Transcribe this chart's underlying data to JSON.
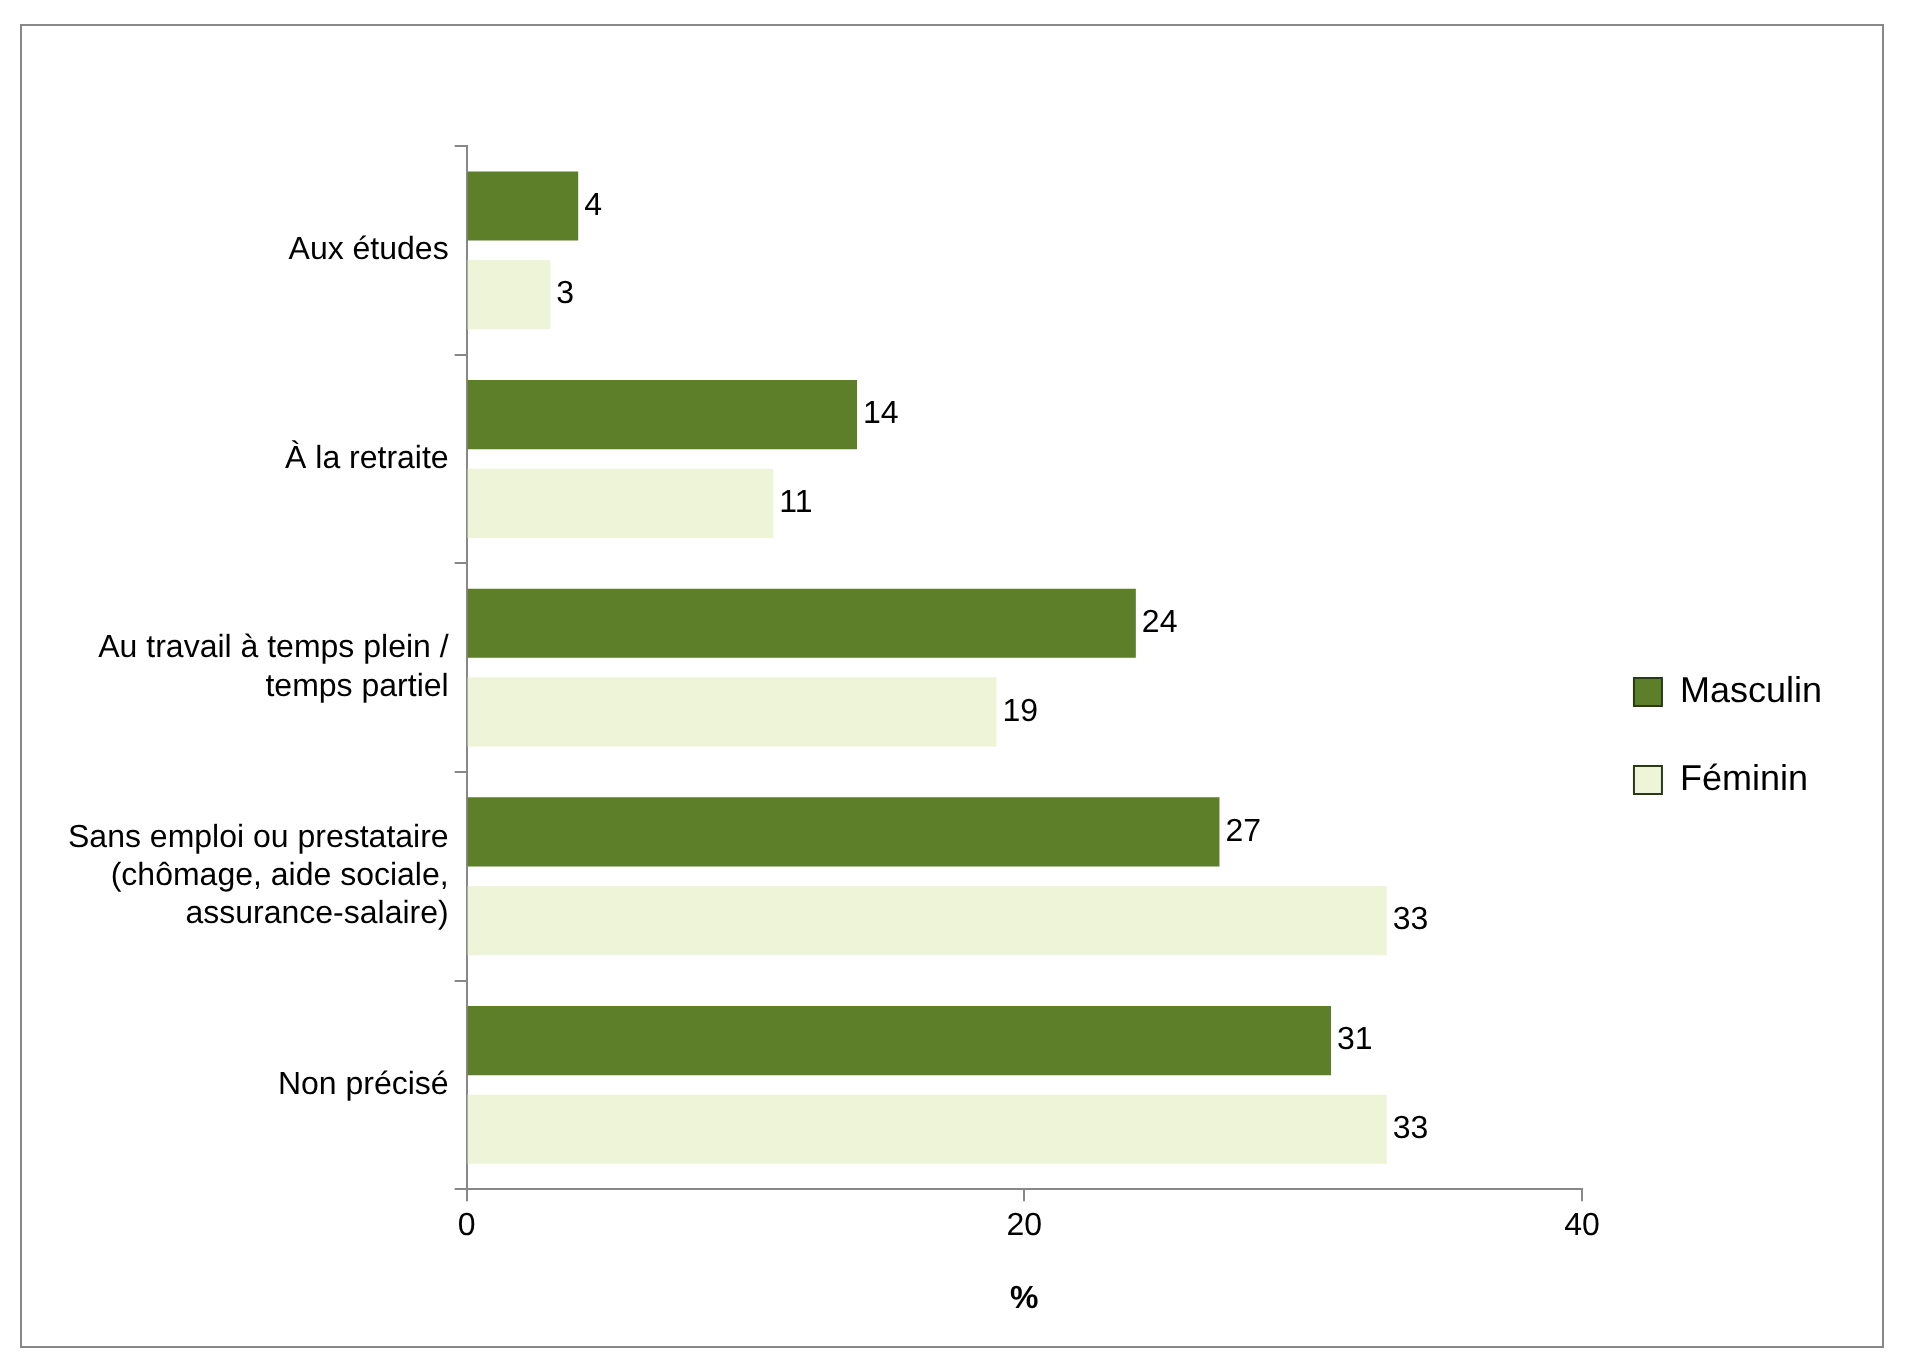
{
  "chart_data": {
    "type": "bar",
    "orientation": "horizontal",
    "xlabel": "%",
    "categories": [
      "Aux études",
      "À la retraite",
      "Au travail à temps plein / temps partiel",
      "Sans emploi ou prestataire (chômage, aide sociale, assurance-salaire)",
      "Non précisé"
    ],
    "series": [
      {
        "name": "Masculin",
        "color": "#5e7f2a",
        "values": [
          4,
          14,
          24,
          27,
          31
        ]
      },
      {
        "name": "Féminin",
        "color": "#eef4d8",
        "values": [
          3,
          11,
          19,
          33,
          33
        ]
      }
    ],
    "xlim": [
      0,
      40
    ],
    "xticks": [
      0,
      20,
      40
    ],
    "grid": false,
    "legend": "right",
    "data_labels": true
  }
}
